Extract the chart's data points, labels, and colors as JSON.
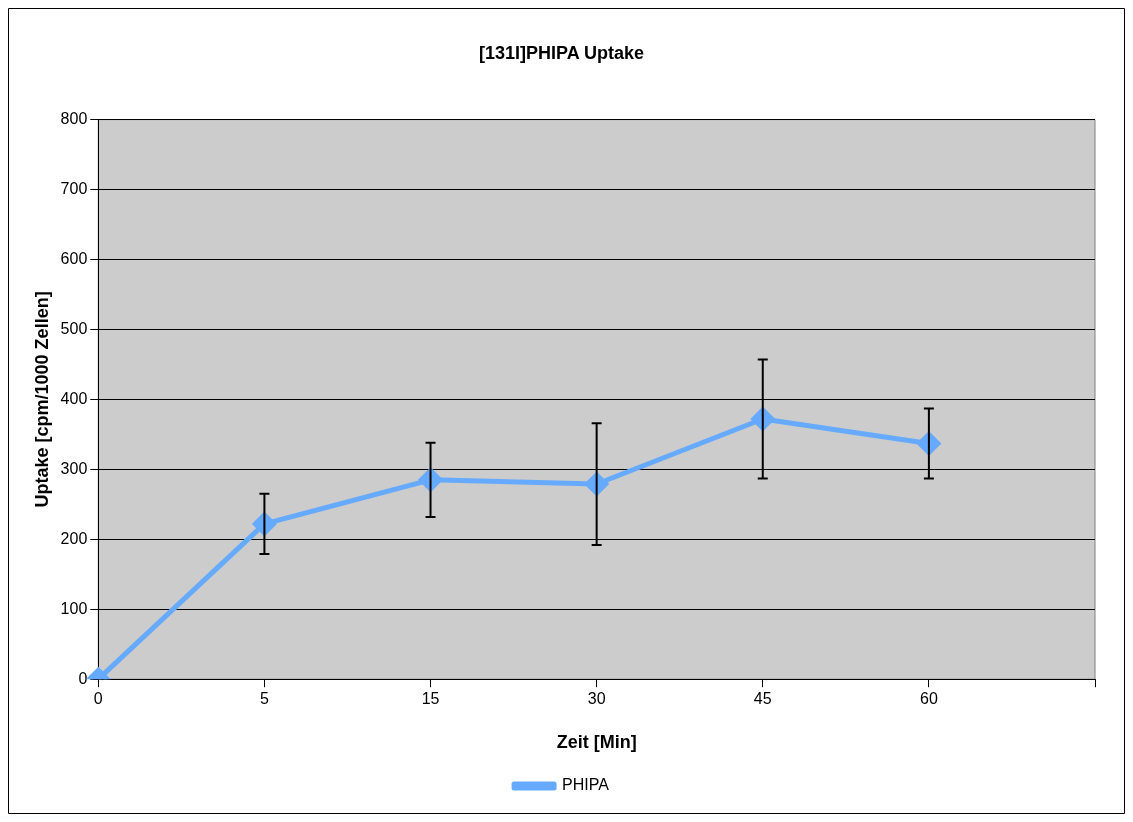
{
  "chart_data": {
    "type": "line",
    "title": "[131I]PHIPA Uptake",
    "xlabel": "Zeit [Min]",
    "ylabel": "Uptake [cpm/1000 Zellen]",
    "categories": [
      "0",
      "5",
      "15",
      "30",
      "45",
      "60",
      null
    ],
    "series": [
      {
        "name": "PHIPA",
        "color": "#66aaff",
        "values": [
          0,
          222,
          285,
          279,
          372,
          337,
          null
        ],
        "errors": [
          null,
          43,
          53,
          87,
          85,
          50,
          null
        ]
      }
    ],
    "ylim": [
      0,
      800
    ],
    "yticks": [
      0,
      100,
      200,
      300,
      400,
      500,
      600,
      700,
      800
    ],
    "grid": "y",
    "legend": "bottom",
    "marker": "diamond",
    "line_style": "solid"
  }
}
